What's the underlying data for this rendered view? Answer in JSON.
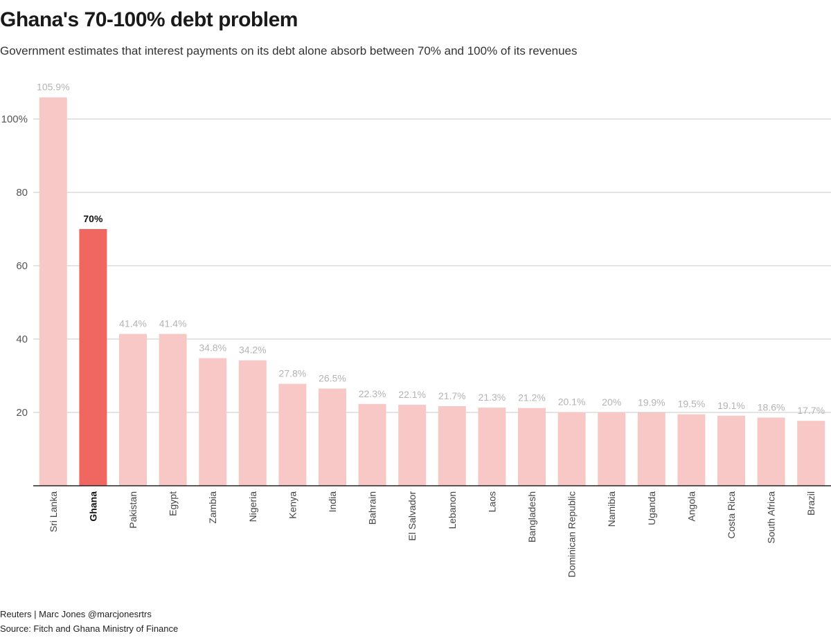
{
  "title": "Ghana's 70-100% debt problem",
  "subtitle": "Government estimates that interest payments on its debt alone absorb between 70% and 100% of its revenues",
  "footer": {
    "credit": "Reuters | Marc Jones @marcjonesrtrs",
    "source": "Source: Fitch and Ghana Ministry of Finance"
  },
  "chart_data": {
    "type": "bar",
    "categories": [
      "Sri Lanka",
      "Ghana",
      "Pakistan",
      "Egypt",
      "Zambia",
      "Nigeria",
      "Kenya",
      "India",
      "Bahrain",
      "El Salvador",
      "Lebanon",
      "Laos",
      "Bangladesh",
      "Dominican Republic",
      "Namibia",
      "Uganda",
      "Angola",
      "Costa Rica",
      "South Africa",
      "Brazil"
    ],
    "values": [
      105.9,
      70,
      41.4,
      41.4,
      34.8,
      34.2,
      27.8,
      26.5,
      22.3,
      22.1,
      21.7,
      21.3,
      21.2,
      20.1,
      20,
      19.9,
      19.5,
      19.1,
      18.6,
      17.7
    ],
    "data_labels": [
      "105.9%",
      "70%",
      "41.4%",
      "41.4%",
      "34.8%",
      "34.2%",
      "27.8%",
      "26.5%",
      "22.3%",
      "22.1%",
      "21.7%",
      "21.3%",
      "21.2%",
      "20.1%",
      "20%",
      "19.9%",
      "19.5%",
      "19.1%",
      "18.6%",
      "17.7%"
    ],
    "highlight": "Ghana",
    "yticks": [
      20,
      40,
      60,
      80,
      100
    ],
    "ytick_labels": [
      "20",
      "40",
      "60",
      "80",
      "100%"
    ],
    "ylim": [
      0,
      110
    ],
    "colors": {
      "bar": "#f7c8c5",
      "highlight": "#ef6760",
      "label": "#b3b3b3",
      "grid": "#c8c8c8",
      "axis": "#222222"
    },
    "grid": true
  }
}
